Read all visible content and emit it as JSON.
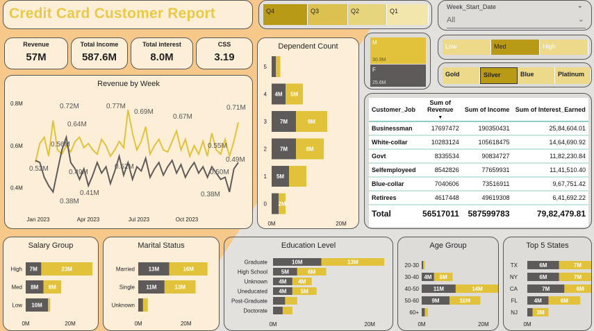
{
  "title": "Credit Card Customer Report",
  "kpis": [
    {
      "label": "Revenue",
      "value": "57M"
    },
    {
      "label": "Total Income",
      "value": "587.6M"
    },
    {
      "label": "Total interest",
      "value": "8.0M"
    },
    {
      "label": "CSS",
      "value": "3.19"
    }
  ],
  "quarters": [
    "Q4",
    "Q3",
    "Q2",
    "Q1"
  ],
  "week_slicer": {
    "label": "Week_Start_Date",
    "value": "All"
  },
  "gender": [
    {
      "label": "M",
      "value": "30.9M"
    },
    {
      "label": "F",
      "value": "25.6M"
    }
  ],
  "income_group": [
    "Low",
    "Med",
    "High"
  ],
  "card_category": [
    "Gold",
    "Silver",
    "Blue",
    "Platinum"
  ],
  "colors": {
    "dark": "#5e5a59",
    "gold": "#e2c23a",
    "darkgold": "#b89a17",
    "lightgold": "#ecd98a"
  },
  "revenue_by_week": {
    "title": "Revenue by Week",
    "y_ticks": [
      "0.8M",
      "0.6M",
      "0.4M"
    ],
    "x_ticks": [
      "Jan 2023",
      "Apr 2023",
      "Jul 2023",
      "Oct 2023"
    ],
    "labels": [
      "0.52M",
      "0.72M",
      "0.56M",
      "0.64M",
      "0.49M",
      "0.41M",
      "0.38M",
      "0.77M",
      "0.52M",
      "0.69M",
      "0.67M",
      "0.55M",
      "0.50M",
      "0.38M",
      "0.49M",
      "0.71M"
    ]
  },
  "chart_data": [
    {
      "type": "line",
      "title": "Revenue by Week",
      "ylim": [
        0.3,
        0.85
      ],
      "series": [
        {
          "values": [
            0.52,
            0.61,
            0.64,
            0.55,
            0.72,
            0.58,
            0.56,
            0.6,
            0.57,
            0.62,
            0.64,
            0.59,
            0.61,
            0.58,
            0.56,
            0.63,
            0.6,
            0.55,
            0.58,
            0.62,
            0.59,
            0.77,
            0.66,
            0.58,
            0.62,
            0.69,
            0.56,
            0.6,
            0.63,
            0.58,
            0.57,
            0.62,
            0.67,
            0.58,
            0.63,
            0.55,
            0.6,
            0.56,
            0.62,
            0.55,
            0.66,
            0.58,
            0.56,
            0.63,
            0.55,
            0.62,
            0.71
          ]
        },
        {
          "values": [
            0.53,
            0.52,
            0.45,
            0.41,
            0.38,
            0.48,
            0.58,
            0.64,
            0.52,
            0.49,
            0.44,
            0.49,
            0.41,
            0.46,
            0.52,
            0.47,
            0.5,
            0.42,
            0.48,
            0.55,
            0.46,
            0.52,
            0.44,
            0.5,
            0.48,
            0.54,
            0.45,
            0.49,
            0.52,
            0.46,
            0.5,
            0.53,
            0.47,
            0.51,
            0.45,
            0.49,
            0.52,
            0.47,
            0.5,
            0.45,
            0.5,
            0.47,
            0.44,
            0.45,
            0.38,
            0.49,
            0.52
          ]
        }
      ]
    },
    {
      "type": "bar",
      "title": "Dependent Count",
      "categories": [
        "5",
        "4",
        "3",
        "2",
        "1",
        "0"
      ],
      "x_ticks": [
        "0M",
        "20M"
      ],
      "series": [
        {
          "values": [
            1.2,
            4,
            7,
            7,
            5,
            2
          ],
          "labels": [
            "",
            "4M",
            "7M",
            "7M",
            "5M",
            ""
          ]
        },
        {
          "values": [
            1.3,
            5,
            9,
            8,
            5,
            2
          ],
          "labels": [
            "",
            "5M",
            "9M",
            "8M",
            "",
            "2M"
          ]
        }
      ],
      "max": 20
    },
    {
      "type": "bar",
      "title": "Salary Group",
      "categories": [
        "High",
        "Med",
        "Low"
      ],
      "x_ticks": [
        "0M",
        "20M"
      ],
      "series": [
        {
          "values": [
            7,
            8,
            10
          ],
          "labels": [
            "7M",
            "8M",
            "10M"
          ]
        },
        {
          "values": [
            23,
            8,
            1
          ],
          "labels": [
            "23M",
            "8M",
            ""
          ]
        }
      ],
      "max": 30
    },
    {
      "type": "bar",
      "title": "Marital Status",
      "categories": [
        "Married",
        "Single",
        "Unknown"
      ],
      "x_ticks": [
        "0M",
        "20M"
      ],
      "series": [
        {
          "values": [
            13,
            11,
            2
          ],
          "labels": [
            "13M",
            "11M",
            ""
          ]
        },
        {
          "values": [
            16,
            13,
            2
          ],
          "labels": [
            "16M",
            "13M",
            ""
          ]
        }
      ],
      "max": 32
    },
    {
      "type": "bar",
      "title": "Education Level",
      "categories": [
        "Graduate",
        "High School",
        "Unknown",
        "Uneducated",
        "Post-Graduate",
        "Doctorate"
      ],
      "x_ticks": [
        "0M",
        "20M"
      ],
      "series": [
        {
          "values": [
            10,
            5,
            4,
            4,
            2.5,
            2
          ],
          "labels": [
            "10M",
            "5M",
            "4M",
            "4M",
            "",
            ""
          ]
        },
        {
          "values": [
            13,
            6,
            4,
            5,
            2.5,
            2
          ],
          "labels": [
            "13M",
            "6M",
            "4M",
            "5M",
            "",
            ""
          ]
        }
      ],
      "max": 25
    },
    {
      "type": "bar",
      "title": "Age Group",
      "categories": [
        "20-30",
        "30-40",
        "40-50",
        "50-60",
        "60+"
      ],
      "x_ticks": [
        "0M",
        "20M"
      ],
      "series": [
        {
          "values": [
            0.5,
            4,
            11,
            9,
            1
          ],
          "labels": [
            "",
            "4M",
            "11M",
            "9M",
            ""
          ]
        },
        {
          "values": [
            0.5,
            6,
            14,
            10,
            1
          ],
          "labels": [
            "",
            "6M",
            "14M",
            "10M",
            ""
          ]
        }
      ],
      "max": 27
    },
    {
      "type": "bar",
      "title": "Top 5 States",
      "categories": [
        "TX",
        "NY",
        "CA",
        "FL",
        "NJ"
      ],
      "x_ticks": [
        "0M",
        "20M"
      ],
      "series": [
        {
          "values": [
            6,
            6,
            7,
            4,
            1
          ],
          "labels": [
            "6M",
            "6M",
            "7M",
            "4M",
            ""
          ]
        },
        {
          "values": [
            7,
            7,
            6,
            6,
            3
          ],
          "labels": [
            "7M",
            "7M",
            "6M",
            "6M",
            "3M"
          ]
        }
      ],
      "max": 16
    }
  ],
  "job_table": {
    "headers": [
      "Customer_Job",
      "Sum of Revenue",
      "Sum of Income",
      "Sum of Interest_Earned"
    ],
    "rows": [
      [
        "Businessman",
        "17697472",
        "190350431",
        "25,84,604.01"
      ],
      [
        "White-collar",
        "10283124",
        "105618475",
        "14,64,690.92"
      ],
      [
        "Govt",
        "8335534",
        "90834727",
        "11,82,230.84"
      ],
      [
        "Selfemployeed",
        "8542826",
        "77659931",
        "11,41,510.40"
      ],
      [
        "Blue-collar",
        "7040606",
        "73516911",
        "9,67,751.42"
      ],
      [
        "Retirees",
        "4617448",
        "49619308",
        "6,41,692.22"
      ]
    ],
    "total": [
      "Total",
      "56517011",
      "587599783",
      "79,82,479.81"
    ]
  }
}
